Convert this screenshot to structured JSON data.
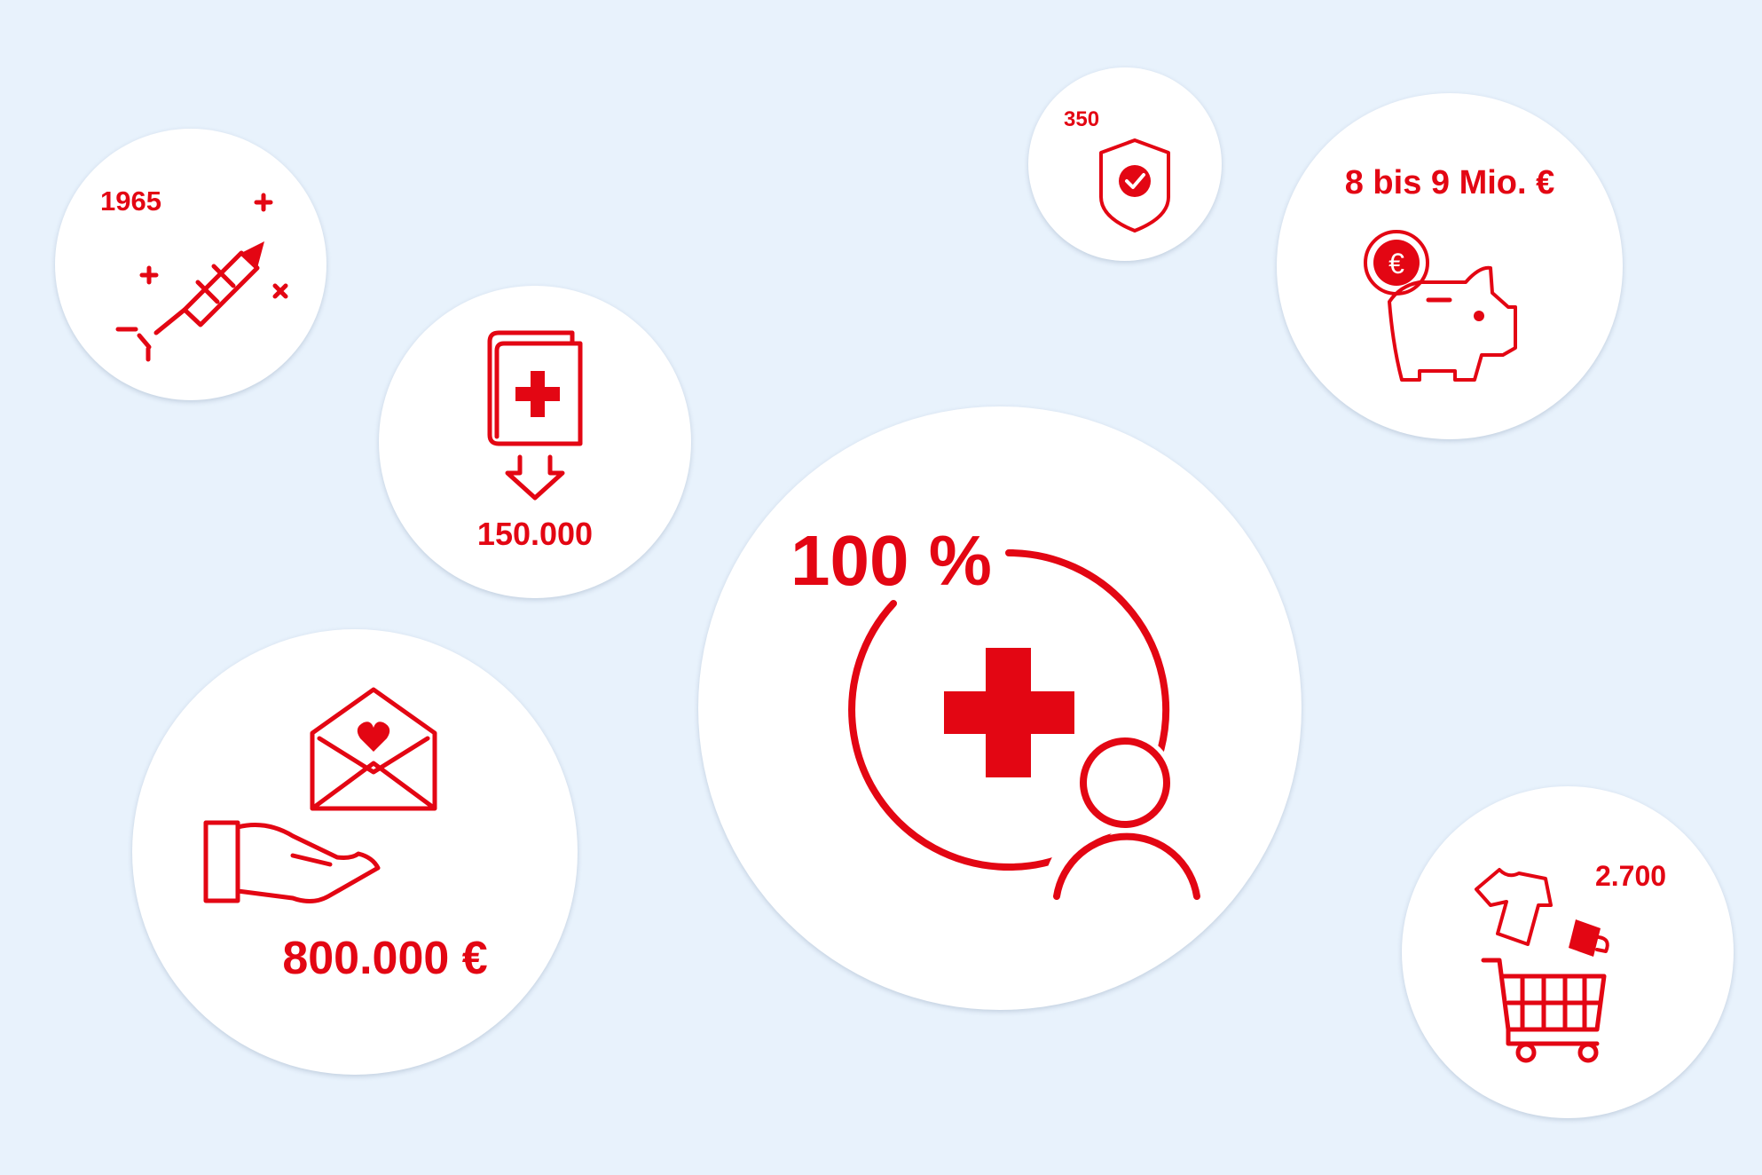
{
  "colors": {
    "background": "#e8f2fc",
    "accent": "#e30613",
    "bubble": "#ffffff"
  },
  "bubbles": [
    {
      "label": "1965",
      "icon": "rocket-firework-icon"
    },
    {
      "label": "150.000",
      "icon": "first-aid-book-download-icon"
    },
    {
      "label": "100 %",
      "icon": "red-cross-person-ring-icon"
    },
    {
      "label": "350",
      "icon": "shield-check-icon"
    },
    {
      "label": "8 bis 9 Mio. €",
      "icon": "piggy-bank-euro-icon"
    },
    {
      "label": "800.000 €",
      "icon": "hand-donation-envelope-icon"
    },
    {
      "label": "2.700",
      "icon": "shopping-cart-clothes-icon"
    }
  ]
}
